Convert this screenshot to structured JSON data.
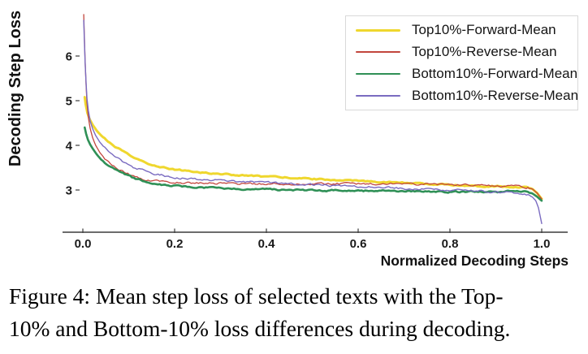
{
  "chart": {
    "x_axis": {
      "label": "Normalized Decoding Steps",
      "tick_labels": [
        "0.0",
        "0.2",
        "0.4",
        "0.6",
        "0.8",
        "1.0"
      ],
      "tick_values": [
        0,
        0.2,
        0.4,
        0.6,
        0.8,
        1.0
      ]
    },
    "y_axis": {
      "label": "Decoding Step Loss",
      "tick_labels": [
        "3",
        "4",
        "5",
        "6"
      ],
      "tick_values": [
        3,
        4,
        5,
        6
      ]
    },
    "style": {
      "axis_line_color": "#3c3c3c",
      "tick_label_color": "#1a1a1a",
      "legend_border_color": "#d9d9d9",
      "background": "#ffffff"
    }
  },
  "chart_data": {
    "type": "line",
    "title": "",
    "xlabel": "Normalized Decoding Steps",
    "ylabel": "Decoding Step Loss",
    "xlim": [
      -0.04,
      1.04
    ],
    "ylim": [
      2.05,
      7.1
    ],
    "grid": false,
    "legend_position": "top-right",
    "series": [
      {
        "name": "Top10%-Forward-Mean",
        "color": "#efd72e",
        "line_width": 3,
        "noise": 0.012,
        "points": [
          [
            0.004,
            5.08
          ],
          [
            0.006,
            4.93
          ],
          [
            0.01,
            4.72
          ],
          [
            0.015,
            4.58
          ],
          [
            0.022,
            4.45
          ],
          [
            0.03,
            4.33
          ],
          [
            0.04,
            4.22
          ],
          [
            0.055,
            4.08
          ],
          [
            0.07,
            3.97
          ],
          [
            0.085,
            3.88
          ],
          [
            0.1,
            3.78
          ],
          [
            0.12,
            3.68
          ],
          [
            0.138,
            3.6
          ],
          [
            0.16,
            3.54
          ],
          [
            0.18,
            3.5
          ],
          [
            0.2,
            3.46
          ],
          [
            0.23,
            3.42
          ],
          [
            0.26,
            3.39
          ],
          [
            0.3,
            3.36
          ],
          [
            0.34,
            3.33
          ],
          [
            0.38,
            3.31
          ],
          [
            0.42,
            3.29
          ],
          [
            0.46,
            3.27
          ],
          [
            0.5,
            3.25
          ],
          [
            0.54,
            3.23
          ],
          [
            0.58,
            3.21
          ],
          [
            0.62,
            3.19
          ],
          [
            0.66,
            3.18
          ],
          [
            0.7,
            3.16
          ],
          [
            0.74,
            3.14
          ],
          [
            0.78,
            3.12
          ],
          [
            0.82,
            3.11
          ],
          [
            0.86,
            3.09
          ],
          [
            0.9,
            3.08
          ],
          [
            0.93,
            3.07
          ],
          [
            0.955,
            3.07
          ],
          [
            0.97,
            3.06
          ],
          [
            0.98,
            3.02
          ],
          [
            0.99,
            2.93
          ],
          [
            1.0,
            2.8
          ]
        ]
      },
      {
        "name": "Top10%-Reverse-Mean",
        "color": "#c2463d",
        "line_width": 1.3,
        "noise": 0.02,
        "points": [
          [
            0.002,
            6.93
          ],
          [
            0.003,
            6.55
          ],
          [
            0.005,
            5.9
          ],
          [
            0.007,
            5.35
          ],
          [
            0.009,
            4.95
          ],
          [
            0.012,
            4.62
          ],
          [
            0.016,
            4.38
          ],
          [
            0.021,
            4.18
          ],
          [
            0.028,
            4.0
          ],
          [
            0.037,
            3.84
          ],
          [
            0.048,
            3.7
          ],
          [
            0.06,
            3.58
          ],
          [
            0.075,
            3.48
          ],
          [
            0.09,
            3.4
          ],
          [
            0.11,
            3.31
          ],
          [
            0.138,
            3.23
          ],
          [
            0.16,
            3.2
          ],
          [
            0.19,
            3.17
          ],
          [
            0.22,
            3.16
          ],
          [
            0.26,
            3.15
          ],
          [
            0.3,
            3.15
          ],
          [
            0.35,
            3.14
          ],
          [
            0.4,
            3.14
          ],
          [
            0.45,
            3.14
          ],
          [
            0.5,
            3.14
          ],
          [
            0.55,
            3.14
          ],
          [
            0.6,
            3.14
          ],
          [
            0.65,
            3.14
          ],
          [
            0.7,
            3.13
          ],
          [
            0.75,
            3.13
          ],
          [
            0.8,
            3.12
          ],
          [
            0.85,
            3.11
          ],
          [
            0.9,
            3.09
          ],
          [
            0.93,
            3.08
          ],
          [
            0.955,
            3.08
          ],
          [
            0.97,
            3.06
          ],
          [
            0.98,
            3.02
          ],
          [
            0.99,
            2.93
          ],
          [
            1.0,
            2.8
          ]
        ]
      },
      {
        "name": "Bottom10%-Forward-Mean",
        "color": "#2f9056",
        "line_width": 2.6,
        "noise": 0.015,
        "points": [
          [
            0.004,
            4.4
          ],
          [
            0.007,
            4.26
          ],
          [
            0.011,
            4.13
          ],
          [
            0.016,
            4.02
          ],
          [
            0.022,
            3.92
          ],
          [
            0.03,
            3.8
          ],
          [
            0.04,
            3.68
          ],
          [
            0.052,
            3.58
          ],
          [
            0.065,
            3.49
          ],
          [
            0.08,
            3.4
          ],
          [
            0.095,
            3.33
          ],
          [
            0.115,
            3.25
          ],
          [
            0.138,
            3.19
          ],
          [
            0.16,
            3.14
          ],
          [
            0.19,
            3.1
          ],
          [
            0.22,
            3.08
          ],
          [
            0.26,
            3.05
          ],
          [
            0.3,
            3.04
          ],
          [
            0.35,
            3.02
          ],
          [
            0.4,
            3.01
          ],
          [
            0.45,
            3.0
          ],
          [
            0.5,
            2.99
          ],
          [
            0.55,
            2.99
          ],
          [
            0.6,
            2.98
          ],
          [
            0.65,
            2.98
          ],
          [
            0.7,
            2.97
          ],
          [
            0.75,
            2.97
          ],
          [
            0.8,
            2.96
          ],
          [
            0.85,
            2.96
          ],
          [
            0.9,
            2.96
          ],
          [
            0.93,
            2.97
          ],
          [
            0.955,
            2.96
          ],
          [
            0.97,
            2.95
          ],
          [
            0.98,
            2.92
          ],
          [
            0.99,
            2.85
          ],
          [
            1.0,
            2.76
          ]
        ]
      },
      {
        "name": "Bottom10%-Reverse-Mean",
        "color": "#7a6bc0",
        "line_width": 1.4,
        "noise": 0.02,
        "points": [
          [
            0.002,
            6.8
          ],
          [
            0.003,
            6.45
          ],
          [
            0.005,
            5.85
          ],
          [
            0.007,
            5.4
          ],
          [
            0.009,
            5.05
          ],
          [
            0.012,
            4.78
          ],
          [
            0.016,
            4.55
          ],
          [
            0.021,
            4.38
          ],
          [
            0.028,
            4.22
          ],
          [
            0.037,
            4.07
          ],
          [
            0.048,
            3.94
          ],
          [
            0.06,
            3.83
          ],
          [
            0.075,
            3.72
          ],
          [
            0.09,
            3.62
          ],
          [
            0.11,
            3.51
          ],
          [
            0.138,
            3.42
          ],
          [
            0.16,
            3.36
          ],
          [
            0.19,
            3.3
          ],
          [
            0.22,
            3.26
          ],
          [
            0.26,
            3.23
          ],
          [
            0.3,
            3.21
          ],
          [
            0.35,
            3.18
          ],
          [
            0.4,
            3.16
          ],
          [
            0.45,
            3.14
          ],
          [
            0.5,
            3.12
          ],
          [
            0.55,
            3.1
          ],
          [
            0.6,
            3.08
          ],
          [
            0.65,
            3.06
          ],
          [
            0.7,
            3.04
          ],
          [
            0.75,
            3.02
          ],
          [
            0.8,
            3.0
          ],
          [
            0.85,
            2.98
          ],
          [
            0.88,
            2.97
          ],
          [
            0.91,
            2.95
          ],
          [
            0.935,
            2.94
          ],
          [
            0.955,
            2.92
          ],
          [
            0.97,
            2.89
          ],
          [
            0.98,
            2.84
          ],
          [
            0.987,
            2.76
          ],
          [
            0.993,
            2.6
          ],
          [
            1.0,
            2.25
          ]
        ]
      }
    ]
  },
  "caption": {
    "line1": "Figure 4: Mean step loss of selected texts with the Top-",
    "line2": "10% and Bottom-10% loss differences during decoding."
  }
}
